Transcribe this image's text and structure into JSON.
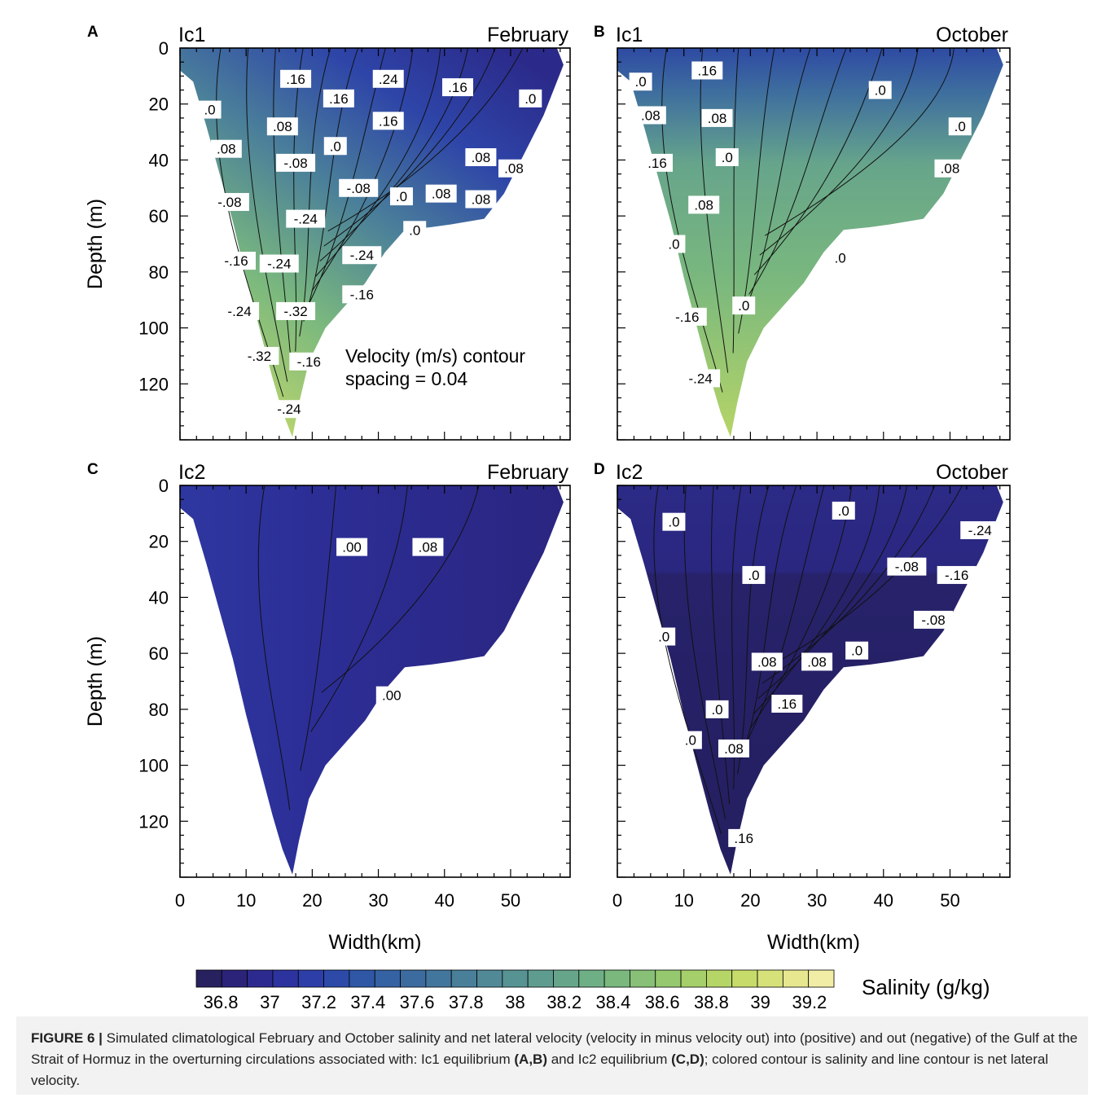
{
  "chart_data": [
    {
      "type": "contour",
      "panel_letter": "A",
      "left_title": "Ic1",
      "right_title": "February",
      "xlabel": "",
      "ylabel": "Depth (m)",
      "xlim": [
        0,
        59
      ],
      "ylim": [
        0,
        140
      ],
      "y_inverted": true,
      "xticks": [],
      "yticks": [
        "0",
        "20",
        "40",
        "60",
        "80",
        "100",
        "120"
      ],
      "salinity_field": "green-blue, freshest (~36.9) near surface right, saltiest (~38.9) near bottom left",
      "contour_labels": [
        {
          "text": ".16",
          "x": 17.5,
          "y": 11
        },
        {
          "text": ".24",
          "x": 31.5,
          "y": 11
        },
        {
          "text": ".16",
          "x": 42,
          "y": 14
        },
        {
          "text": ".0",
          "x": 53,
          "y": 18
        },
        {
          "text": ".16",
          "x": 24,
          "y": 18
        },
        {
          "text": ".16",
          "x": 31.5,
          "y": 26
        },
        {
          "text": ".0",
          "x": 4.5,
          "y": 22
        },
        {
          "text": ".08",
          "x": 15.5,
          "y": 28
        },
        {
          "text": ".08",
          "x": 7,
          "y": 36
        },
        {
          "text": ".0",
          "x": 23.5,
          "y": 35
        },
        {
          "text": ".08",
          "x": 45.5,
          "y": 39
        },
        {
          "text": ".08",
          "x": 50.5,
          "y": 43
        },
        {
          "text": "-.08",
          "x": 17.5,
          "y": 41
        },
        {
          "text": "-.08",
          "x": 27,
          "y": 50
        },
        {
          "text": ".0",
          "x": 33.5,
          "y": 53
        },
        {
          "text": ".08",
          "x": 39.5,
          "y": 52
        },
        {
          "text": ".08",
          "x": 45.5,
          "y": 54
        },
        {
          "text": "-.08",
          "x": 7.5,
          "y": 55
        },
        {
          "text": "-.24",
          "x": 19,
          "y": 61
        },
        {
          "text": ".0",
          "x": 35.5,
          "y": 65
        },
        {
          "text": "-.24",
          "x": 15,
          "y": 77
        },
        {
          "text": "-.16",
          "x": 8.5,
          "y": 76
        },
        {
          "text": "-.24",
          "x": 27.5,
          "y": 74
        },
        {
          "text": "-.16",
          "x": 27.5,
          "y": 88
        },
        {
          "text": "-.32",
          "x": 17.5,
          "y": 94
        },
        {
          "text": "-.24",
          "x": 9,
          "y": 94
        },
        {
          "text": "-.32",
          "x": 12,
          "y": 110
        },
        {
          "text": "-.16",
          "x": 19.5,
          "y": 112
        },
        {
          "text": "-.24",
          "x": 16.5,
          "y": 129
        }
      ],
      "annotation_line1": "Velocity (m/s) contour",
      "annotation_line2": "spacing = 0.04"
    },
    {
      "type": "contour",
      "panel_letter": "B",
      "left_title": "Ic1",
      "right_title": "October",
      "xlabel": "",
      "ylabel": "",
      "xlim": [
        0,
        59
      ],
      "ylim": [
        0,
        140
      ],
      "y_inverted": true,
      "salinity_field": "blue near surface, green at depth, saltiest near bottom",
      "contour_labels": [
        {
          "text": ".16",
          "x": 13.5,
          "y": 8
        },
        {
          "text": ".0",
          "x": 3.5,
          "y": 12
        },
        {
          "text": ".0",
          "x": 39.5,
          "y": 15
        },
        {
          "text": ".08",
          "x": 5,
          "y": 24
        },
        {
          "text": ".08",
          "x": 15,
          "y": 25
        },
        {
          "text": ".0",
          "x": 51.5,
          "y": 28
        },
        {
          "text": ".16",
          "x": 6,
          "y": 41
        },
        {
          "text": ".0",
          "x": 16.5,
          "y": 39
        },
        {
          "text": ".08",
          "x": 50,
          "y": 43
        },
        {
          "text": ".08",
          "x": 13,
          "y": 56
        },
        {
          "text": ".0",
          "x": 8.5,
          "y": 70
        },
        {
          "text": ".0",
          "x": 33.5,
          "y": 75
        },
        {
          "text": ".0",
          "x": 19,
          "y": 92
        },
        {
          "text": "-.16",
          "x": 10.5,
          "y": 96
        },
        {
          "text": "-.24",
          "x": 12.5,
          "y": 118
        }
      ]
    },
    {
      "type": "contour",
      "panel_letter": "C",
      "left_title": "Ic2",
      "right_title": "February",
      "xlabel": "Width(km)",
      "ylabel": "Depth (m)",
      "xlim": [
        0,
        59
      ],
      "ylim": [
        0,
        140
      ],
      "y_inverted": true,
      "xticks": [
        "0",
        "10",
        "20",
        "30",
        "40",
        "50"
      ],
      "yticks": [
        "0",
        "20",
        "40",
        "60",
        "80",
        "100",
        "120"
      ],
      "salinity_field": "uniform dark blue (~36.9–37.0)",
      "contour_labels": [
        {
          "text": ".00",
          "x": 26,
          "y": 22
        },
        {
          "text": ".08",
          "x": 37.5,
          "y": 22
        },
        {
          "text": ".00",
          "x": 32,
          "y": 75
        }
      ]
    },
    {
      "type": "contour",
      "panel_letter": "D",
      "left_title": "Ic2",
      "right_title": "October",
      "xlabel": "Width(km)",
      "ylabel": "",
      "xlim": [
        0,
        59
      ],
      "ylim": [
        0,
        140
      ],
      "y_inverted": true,
      "xticks": [
        "0",
        "10",
        "20",
        "30",
        "40",
        "50"
      ],
      "salinity_field": "dark navy (~36.7–36.8), slightly lighter upper layer",
      "contour_labels": [
        {
          "text": ".0",
          "x": 8.5,
          "y": 13
        },
        {
          "text": ".0",
          "x": 34,
          "y": 9
        },
        {
          "text": "-.24",
          "x": 54.5,
          "y": 16
        },
        {
          "text": ".0",
          "x": 20.5,
          "y": 32
        },
        {
          "text": "-.08",
          "x": 43.5,
          "y": 29
        },
        {
          "text": "-.16",
          "x": 51,
          "y": 32
        },
        {
          "text": "-.08",
          "x": 47.5,
          "y": 48
        },
        {
          "text": ".0",
          "x": 7,
          "y": 54
        },
        {
          "text": ".08",
          "x": 22.5,
          "y": 63
        },
        {
          "text": ".08",
          "x": 30,
          "y": 63
        },
        {
          "text": ".0",
          "x": 36,
          "y": 59
        },
        {
          "text": ".0",
          "x": 15,
          "y": 80
        },
        {
          "text": ".16",
          "x": 25.5,
          "y": 78
        },
        {
          "text": ".0",
          "x": 11,
          "y": 91
        },
        {
          "text": ".08",
          "x": 17.5,
          "y": 94
        },
        {
          "text": ".16",
          "x": 19,
          "y": 126
        }
      ]
    }
  ],
  "colorbar": {
    "title": "Salinity (g/kg)",
    "tick_labels": [
      "36.8",
      "37",
      "37.2",
      "37.4",
      "37.6",
      "37.8",
      "38",
      "38.2",
      "38.4",
      "38.6",
      "38.8",
      "39",
      "39.2"
    ],
    "range": [
      36.7,
      39.3
    ],
    "colors": [
      "#27215f",
      "#2b237a",
      "#2d2a8f",
      "#2d339e",
      "#2e3ea8",
      "#2d4aa9",
      "#2f57a6",
      "#3562a2",
      "#3c6c9f",
      "#43769c",
      "#4a7f9a",
      "#518997",
      "#589394",
      "#5f9c90",
      "#67a58b",
      "#6faf85",
      "#7ab87e",
      "#87c076",
      "#95c86f",
      "#a5cf6a",
      "#b6d567",
      "#c7db6a",
      "#d7e17a",
      "#e6e78f",
      "#f2eda6"
    ]
  },
  "caption": {
    "label": "FIGURE 6 |",
    "text_a": "Simulated climatological February and October salinity and net lateral velocity (velocity in minus velocity out) into (positive) and out (negative) of the Gulf at the Strait of Hormuz in the overturning circulations associated with: Ic1 equilibrium ",
    "ref_ab": "(A,B)",
    "text_b": " and Ic2 equilibrium ",
    "ref_cd": "(C,D)",
    "text_c": "; colored contour is salinity and line contour is net lateral velocity."
  }
}
